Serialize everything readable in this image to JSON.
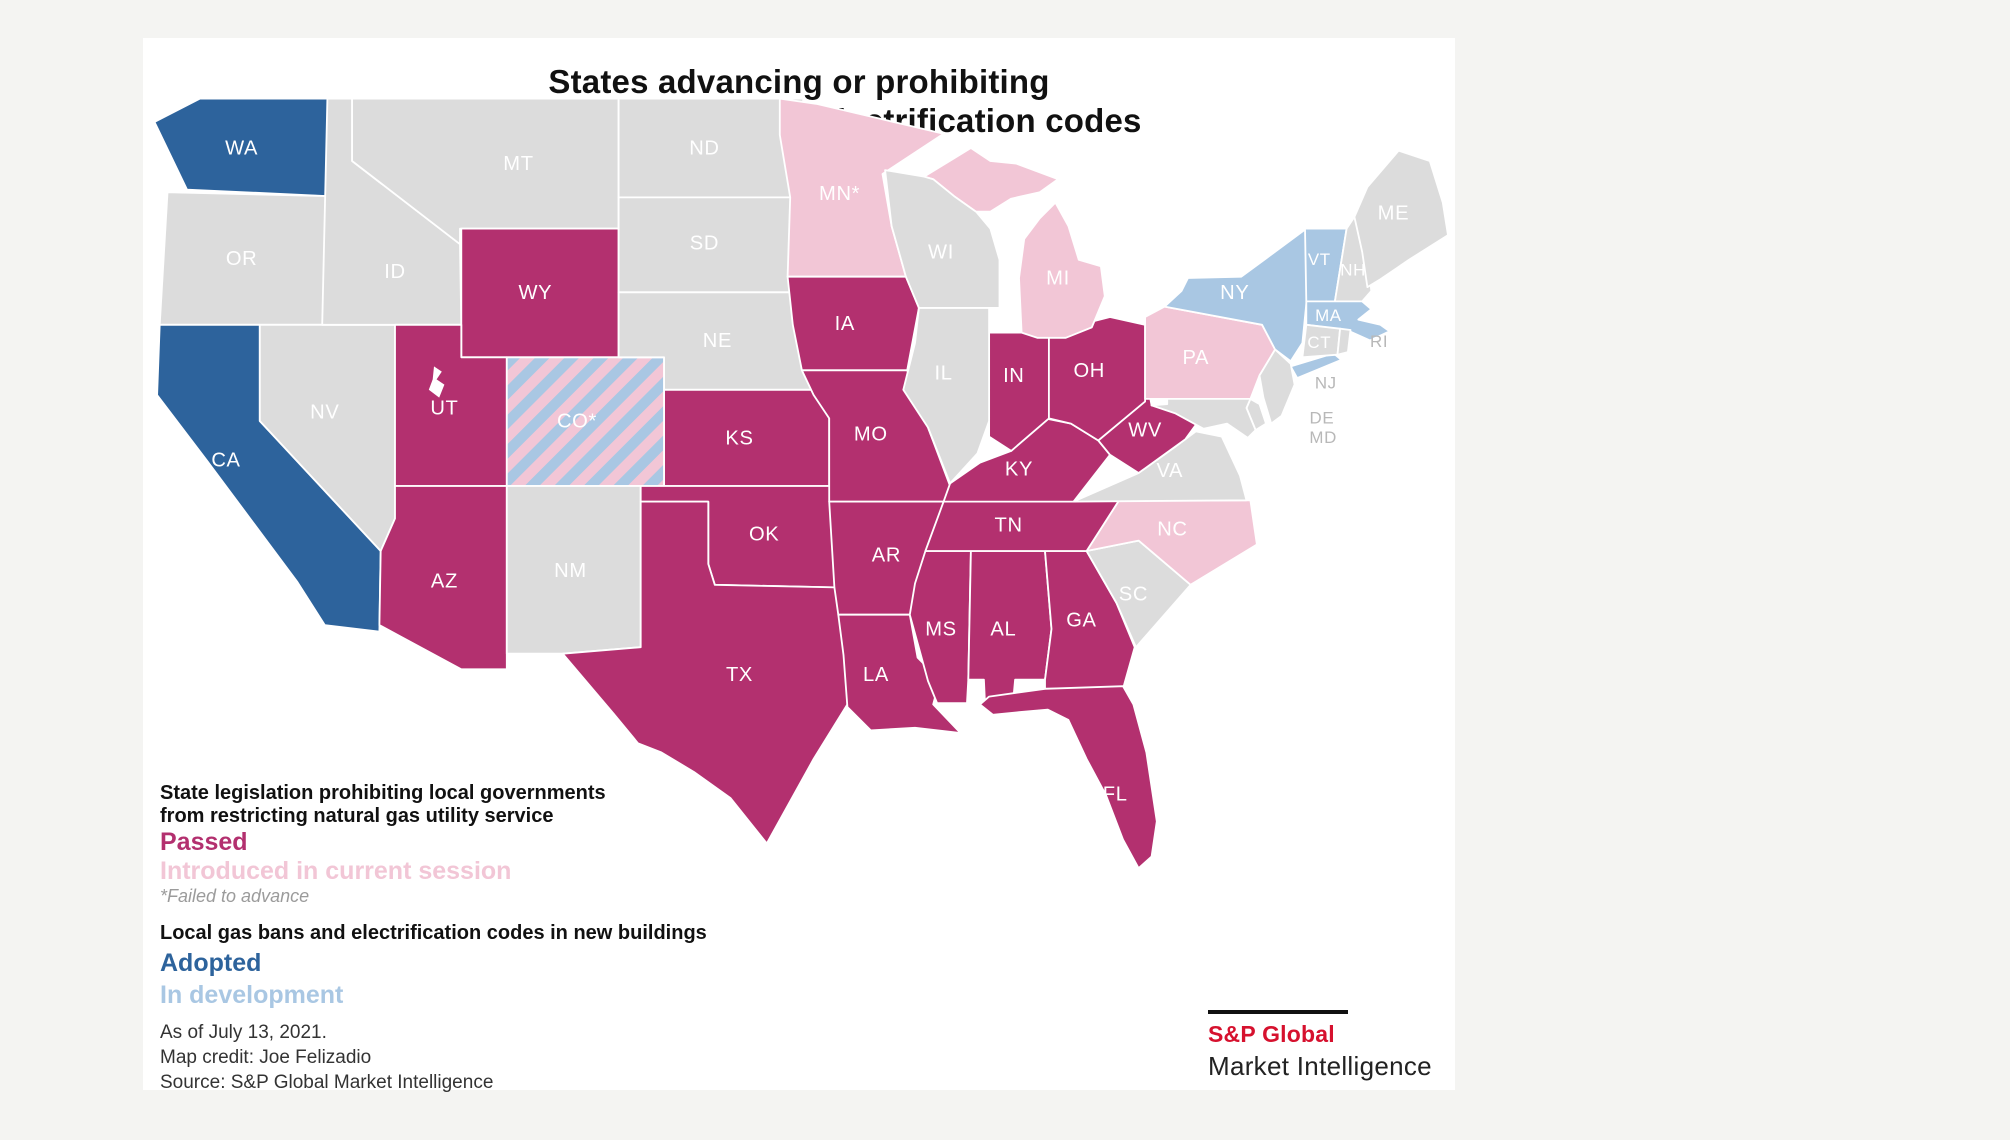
{
  "page": {
    "outer_background": "#f4f4f2",
    "panel_background": "#ffffff"
  },
  "title": {
    "line1": "States advancing or prohibiting",
    "line2": "building gas bans and electrification codes"
  },
  "legend": {
    "gas_ban_preemption": {
      "heading_line1": "State legislation prohibiting local governments",
      "heading_line2": "from restricting natural gas utility service",
      "passed_label": "Passed",
      "introduced_label": "Introduced in current session",
      "footnote": "*Failed to advance"
    },
    "electrification_codes": {
      "heading": "Local gas bans and electrification codes in new buildings",
      "adopted_label": "Adopted",
      "in_development_label": "In development"
    }
  },
  "footer": {
    "as_of": "As of July 13, 2021.",
    "credit": "Map credit: Joe Felizadio",
    "source": "Source: S&P Global Market Intelligence"
  },
  "logo": {
    "brand": "S&P Global",
    "division": "Market Intelligence",
    "brand_color": "#d6112e"
  },
  "map": {
    "colors": {
      "passed": "#b3306f",
      "introduced": "#f2c6d6",
      "adopted": "#2d639c",
      "in_development": "#a9c7e3",
      "none": "#dcdcdc",
      "state_border": "#ffffff",
      "label_on_state": "#ffffff",
      "label_outside": "#b8b8b8"
    },
    "states": [
      {
        "id": "WA",
        "label": "WA",
        "category": "adopted"
      },
      {
        "id": "OR",
        "label": "OR",
        "category": "none"
      },
      {
        "id": "CA",
        "label": "CA",
        "category": "adopted"
      },
      {
        "id": "NV",
        "label": "NV",
        "category": "none"
      },
      {
        "id": "ID",
        "label": "ID",
        "category": "none"
      },
      {
        "id": "MT",
        "label": "MT",
        "category": "none"
      },
      {
        "id": "WY",
        "label": "WY",
        "category": "passed"
      },
      {
        "id": "UT",
        "label": "UT",
        "category": "passed"
      },
      {
        "id": "CO",
        "label": "CO*",
        "category": "mixed"
      },
      {
        "id": "AZ",
        "label": "AZ",
        "category": "passed"
      },
      {
        "id": "NM",
        "label": "NM",
        "category": "none"
      },
      {
        "id": "ND",
        "label": "ND",
        "category": "none"
      },
      {
        "id": "SD",
        "label": "SD",
        "category": "none"
      },
      {
        "id": "NE",
        "label": "NE",
        "category": "none"
      },
      {
        "id": "KS",
        "label": "KS",
        "category": "passed"
      },
      {
        "id": "OK",
        "label": "OK",
        "category": "passed"
      },
      {
        "id": "TX",
        "label": "TX",
        "category": "passed"
      },
      {
        "id": "MN",
        "label": "MN*",
        "category": "introduced"
      },
      {
        "id": "IA",
        "label": "IA",
        "category": "passed"
      },
      {
        "id": "MO",
        "label": "MO",
        "category": "passed"
      },
      {
        "id": "AR",
        "label": "AR",
        "category": "passed"
      },
      {
        "id": "LA",
        "label": "LA",
        "category": "passed"
      },
      {
        "id": "WI",
        "label": "WI",
        "category": "none"
      },
      {
        "id": "MI",
        "label": "MI",
        "category": "introduced"
      },
      {
        "id": "IL",
        "label": "IL",
        "category": "none"
      },
      {
        "id": "IN",
        "label": "IN",
        "category": "passed"
      },
      {
        "id": "OH",
        "label": "OH",
        "category": "passed"
      },
      {
        "id": "KY",
        "label": "KY",
        "category": "passed"
      },
      {
        "id": "TN",
        "label": "TN",
        "category": "passed"
      },
      {
        "id": "MS",
        "label": "MS",
        "category": "passed"
      },
      {
        "id": "AL",
        "label": "AL",
        "category": "passed"
      },
      {
        "id": "GA",
        "label": "GA",
        "category": "passed"
      },
      {
        "id": "FL",
        "label": "FL",
        "category": "passed"
      },
      {
        "id": "WV",
        "label": "WV",
        "category": "passed"
      },
      {
        "id": "VA",
        "label": "VA",
        "category": "none"
      },
      {
        "id": "NC",
        "label": "NC",
        "category": "introduced"
      },
      {
        "id": "SC",
        "label": "SC",
        "category": "none"
      },
      {
        "id": "PA",
        "label": "PA",
        "category": "introduced"
      },
      {
        "id": "NY",
        "label": "NY",
        "category": "in_development"
      },
      {
        "id": "NJ",
        "label": "NJ",
        "category": "none",
        "label_outside": true
      },
      {
        "id": "DE",
        "label": "DE",
        "category": "none",
        "label_outside": true
      },
      {
        "id": "MD",
        "label": "MD",
        "category": "none",
        "label_outside": true
      },
      {
        "id": "VT",
        "label": "VT",
        "category": "in_development"
      },
      {
        "id": "NH",
        "label": "NH",
        "category": "none"
      },
      {
        "id": "MA",
        "label": "MA",
        "category": "in_development"
      },
      {
        "id": "CT",
        "label": "CT",
        "category": "none"
      },
      {
        "id": "RI",
        "label": "RI",
        "category": "none",
        "label_outside": true
      },
      {
        "id": "ME",
        "label": "ME",
        "category": "none"
      }
    ]
  }
}
